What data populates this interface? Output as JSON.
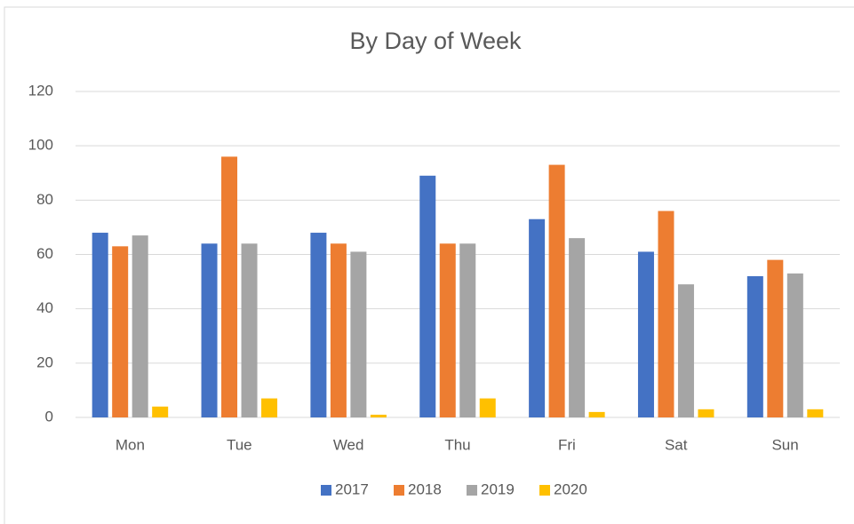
{
  "chart_data": {
    "type": "bar",
    "title": "By Day of Week",
    "categories": [
      "Mon",
      "Tue",
      "Wed",
      "Thu",
      "Fri",
      "Sat",
      "Sun"
    ],
    "series": [
      {
        "name": "2017",
        "color": "#4472c4",
        "values": [
          68,
          64,
          68,
          89,
          73,
          61,
          52
        ]
      },
      {
        "name": "2018",
        "color": "#ed7d31",
        "values": [
          63,
          96,
          64,
          64,
          93,
          76,
          58
        ]
      },
      {
        "name": "2019",
        "color": "#a5a5a5",
        "values": [
          67,
          64,
          61,
          64,
          66,
          49,
          53
        ]
      },
      {
        "name": "2020",
        "color": "#ffc000",
        "values": [
          4,
          7,
          1,
          7,
          2,
          3,
          3
        ]
      }
    ],
    "ylim": [
      0,
      120
    ],
    "yticks": [
      0,
      20,
      40,
      60,
      80,
      100,
      120
    ],
    "grid": true,
    "legend": "bottom"
  }
}
